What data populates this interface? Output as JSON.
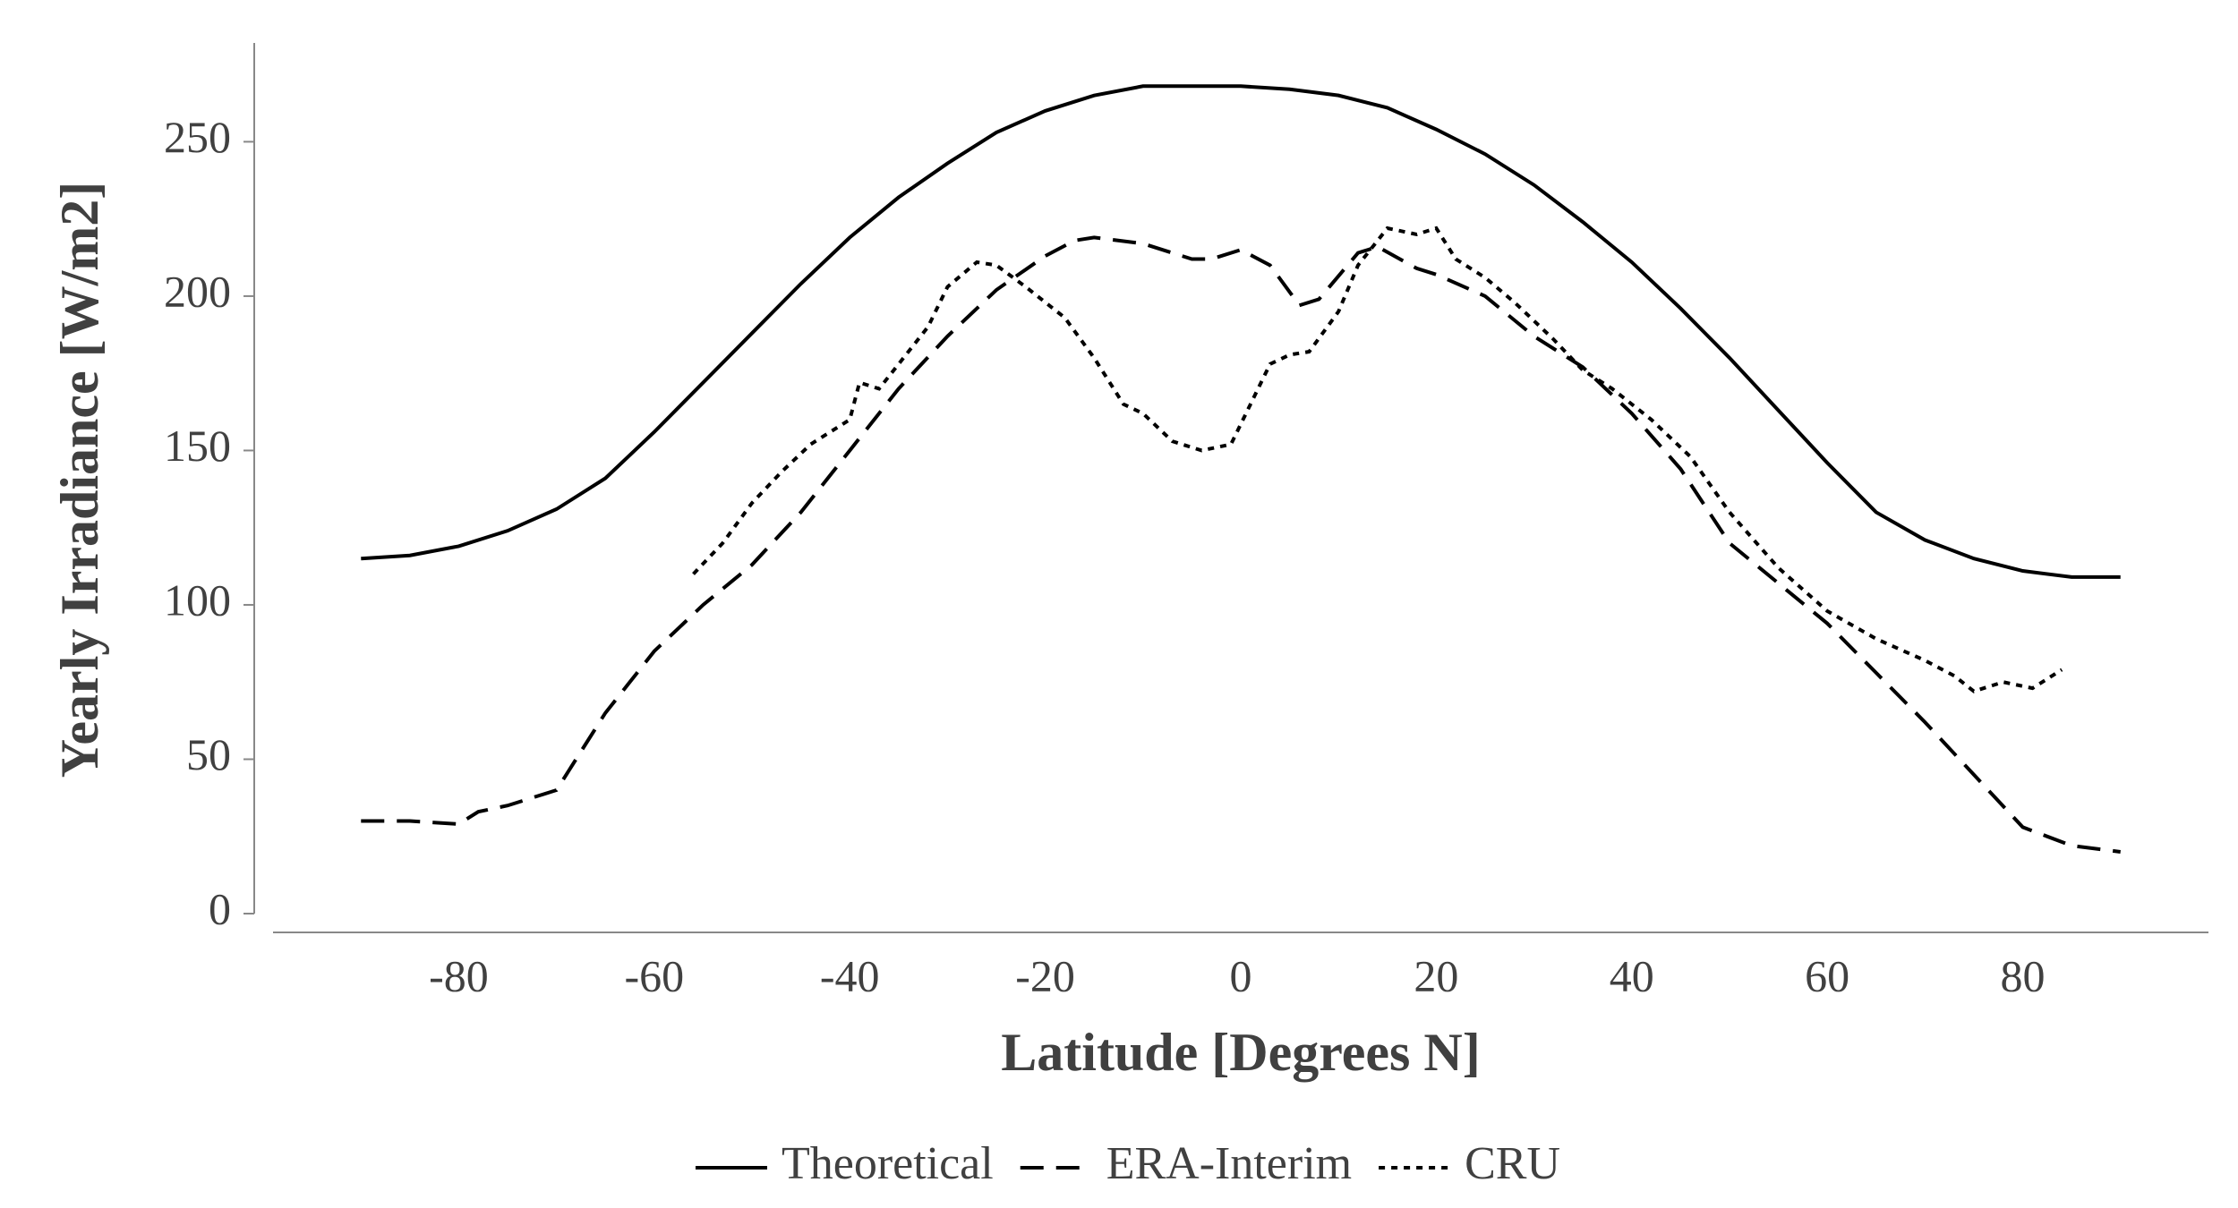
{
  "chart_data": {
    "type": "line",
    "xlabel": "Latitude [Degrees N]",
    "ylabel": "Yearly Irradiance [W/m2]",
    "xlim": [
      -99,
      99
    ],
    "ylim": [
      0,
      282
    ],
    "xticks": [
      -80,
      -60,
      -40,
      -20,
      0,
      20,
      40,
      60,
      80
    ],
    "yticks": [
      0,
      50,
      100,
      150,
      200,
      250
    ],
    "legend": "bottom",
    "series": [
      {
        "name": "Theoretical",
        "color": "#000000",
        "line_style": "solid",
        "x": [
          -90,
          -85,
          -80,
          -75,
          -70,
          -65,
          -60,
          -55,
          -50,
          -45,
          -40,
          -35,
          -30,
          -25,
          -20,
          -15,
          -10,
          -5,
          0,
          5,
          10,
          15,
          20,
          25,
          30,
          35,
          40,
          45,
          50,
          55,
          60,
          65,
          70,
          75,
          80,
          85,
          90
        ],
        "values": [
          115,
          116,
          119,
          124,
          131,
          141,
          156,
          172,
          188,
          204,
          219,
          232,
          243,
          253,
          260,
          265,
          268,
          268,
          268,
          267,
          265,
          261,
          254,
          246,
          236,
          224,
          211,
          196,
          180,
          163,
          146,
          130,
          121,
          115,
          111,
          109,
          109
        ]
      },
      {
        "name": "ERA-Interim",
        "color": "#000000",
        "line_style": "dashed",
        "x": [
          -90,
          -85,
          -80,
          -78,
          -75,
          -70,
          -65,
          -60,
          -55,
          -50,
          -45,
          -40,
          -35,
          -30,
          -25,
          -20,
          -17,
          -15,
          -10,
          -5,
          -3,
          0,
          3,
          6,
          8,
          12,
          14,
          18,
          20,
          25,
          30,
          35,
          40,
          45,
          50,
          55,
          60,
          65,
          70,
          75,
          80,
          85,
          90
        ],
        "values": [
          30,
          30,
          29,
          33,
          35,
          40,
          65,
          85,
          100,
          113,
          130,
          150,
          170,
          187,
          202,
          213,
          218,
          219,
          217,
          212,
          212,
          215,
          210,
          197,
          199,
          214,
          216,
          209,
          207,
          200,
          187,
          177,
          162,
          144,
          120,
          107,
          94,
          78,
          62,
          45,
          28,
          22,
          20
        ]
      },
      {
        "name": "CRU",
        "color": "#000000",
        "line_style": "dotted",
        "x": [
          -56,
          -53,
          -50,
          -47,
          -44,
          -40,
          -39,
          -37,
          -35,
          -32,
          -30,
          -27,
          -25,
          -22,
          -18,
          -15,
          -12,
          -10,
          -7,
          -4,
          -1,
          1,
          3,
          5,
          7,
          10,
          12,
          15,
          18,
          20,
          22,
          25,
          28,
          32,
          35,
          38,
          42,
          46,
          50,
          55,
          60,
          65,
          70,
          73,
          75,
          78,
          81,
          84
        ],
        "values": [
          110,
          120,
          133,
          143,
          152,
          160,
          172,
          170,
          178,
          190,
          203,
          211,
          210,
          203,
          193,
          180,
          165,
          162,
          153,
          150,
          152,
          165,
          178,
          181,
          182,
          195,
          210,
          222,
          220,
          222,
          212,
          206,
          198,
          186,
          176,
          170,
          160,
          148,
          130,
          112,
          98,
          89,
          82,
          77,
          72,
          75,
          73,
          79
        ]
      }
    ]
  }
}
